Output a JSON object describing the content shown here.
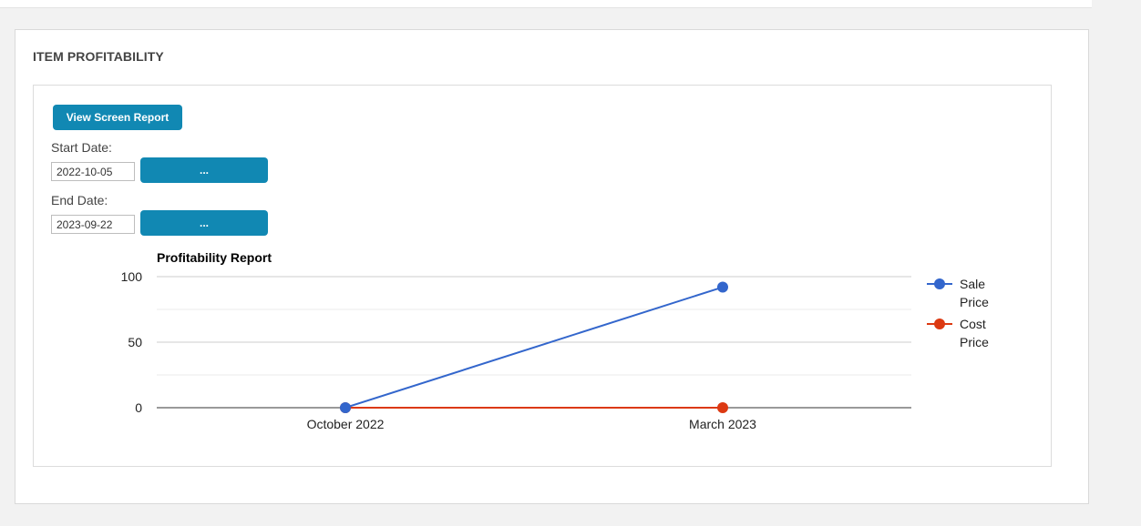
{
  "panel": {
    "title": "ITEM PROFITABILITY"
  },
  "controls": {
    "view_report_label": "View Screen Report",
    "start_date_label": "Start Date:",
    "start_date_value": "2022-10-05",
    "start_picker_label": "...",
    "end_date_label": "End Date:",
    "end_date_value": "2023-09-22",
    "end_picker_label": "..."
  },
  "colors": {
    "button": "#1188b3",
    "sale": "#3366cc",
    "cost": "#dc3912"
  },
  "chart_data": {
    "type": "line",
    "title": "Profitability Report",
    "xlabel": "",
    "ylabel": "",
    "categories": [
      "October 2022",
      "March 2023"
    ],
    "ylim": [
      0,
      100
    ],
    "yticks": [
      0,
      50,
      100
    ],
    "grid": true,
    "legend": "right",
    "series": [
      {
        "name": "Sale Price",
        "legend_lines": [
          "Sale",
          "Price"
        ],
        "values": [
          0,
          92
        ],
        "color": "#3366cc"
      },
      {
        "name": "Cost Price",
        "legend_lines": [
          "Cost",
          "Price"
        ],
        "values": [
          0,
          0
        ],
        "color": "#dc3912"
      }
    ]
  }
}
